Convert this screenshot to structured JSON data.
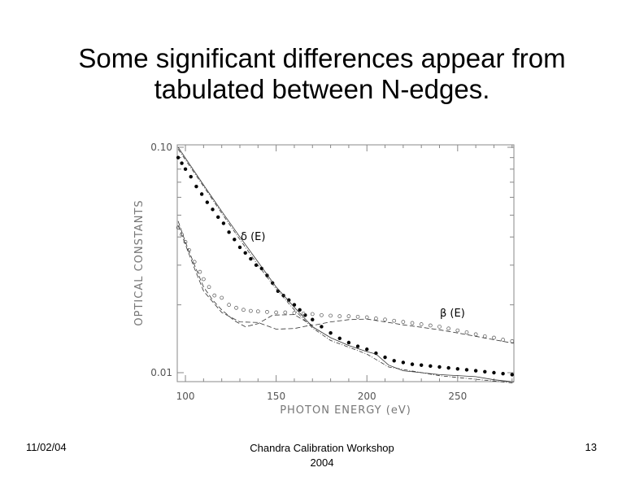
{
  "slide": {
    "title_line1": "Some significant differences appear from",
    "title_line2": "tabulated between N-edges.",
    "footer_date": "11/02/04",
    "footer_conference": "Chandra Calibration Workshop",
    "footer_year": "2004",
    "page_number": "13"
  },
  "chart_data": {
    "type": "scatter",
    "title": "",
    "xlabel": "PHOTON ENERGY (eV)",
    "ylabel": "OPTICAL CONSTANTS",
    "xlim": [
      95.5,
      281
    ],
    "ylim": [
      0.0091,
      0.1
    ],
    "yscale": "log",
    "xticks": [
      100,
      150,
      200,
      250
    ],
    "xtick_labels": [
      "100",
      "150",
      "200",
      "250"
    ],
    "yticks": [
      0.01,
      0.1
    ],
    "ytick_labels": [
      "0.01",
      "0.10"
    ],
    "annotations": [
      {
        "text": "δ (E)",
        "x": 132,
        "y": 0.037
      },
      {
        "text": "β (E)",
        "x": 244,
        "y": 0.0175
      }
    ],
    "series": [
      {
        "name": "delta measured",
        "style": "filled-dots",
        "x": [
          96,
          98,
          100,
          103,
          106,
          109,
          112,
          115,
          118,
          121,
          124,
          127,
          130,
          133,
          136,
          139,
          142,
          145,
          148,
          151,
          154,
          157,
          160,
          163,
          166,
          170,
          175,
          180,
          185,
          190,
          195,
          200,
          205,
          210,
          215,
          220,
          225,
          230,
          235,
          240,
          245,
          250,
          255,
          260,
          265,
          270,
          275,
          280
        ],
        "y": [
          0.09,
          0.085,
          0.08,
          0.074,
          0.067,
          0.062,
          0.057,
          0.053,
          0.049,
          0.046,
          0.042,
          0.039,
          0.036,
          0.034,
          0.032,
          0.03,
          0.029,
          0.027,
          0.025,
          0.023,
          0.022,
          0.021,
          0.02,
          0.019,
          0.018,
          0.0172,
          0.016,
          0.015,
          0.0142,
          0.0136,
          0.0131,
          0.0127,
          0.0122,
          0.0117,
          0.0113,
          0.0111,
          0.0109,
          0.0108,
          0.0107,
          0.0106,
          0.0105,
          0.0104,
          0.0103,
          0.0102,
          0.0101,
          0.01,
          0.0099,
          0.0098
        ]
      },
      {
        "name": "beta measured",
        "style": "open-circles",
        "x": [
          96,
          98,
          100,
          102,
          105,
          108,
          110,
          113,
          116,
          120,
          124,
          128,
          132,
          136,
          140,
          145,
          150,
          155,
          160,
          165,
          170,
          175,
          180,
          185,
          190,
          195,
          200,
          205,
          210,
          215,
          220,
          225,
          230,
          235,
          240,
          245,
          250,
          255,
          260,
          265,
          270,
          275,
          280
        ],
        "y": [
          0.044,
          0.041,
          0.038,
          0.035,
          0.031,
          0.028,
          0.026,
          0.024,
          0.022,
          0.0215,
          0.02,
          0.0194,
          0.019,
          0.0188,
          0.0187,
          0.0186,
          0.0185,
          0.0185,
          0.0184,
          0.0183,
          0.0182,
          0.018,
          0.0179,
          0.0178,
          0.0178,
          0.0177,
          0.0176,
          0.0174,
          0.0172,
          0.017,
          0.0168,
          0.0166,
          0.0164,
          0.0162,
          0.016,
          0.0157,
          0.0154,
          0.0151,
          0.0148,
          0.0145,
          0.0143,
          0.014,
          0.0138
        ]
      },
      {
        "name": "delta tabulated",
        "style": "solid-line",
        "x": [
          96,
          110,
          120,
          130,
          140,
          150,
          160,
          170,
          180,
          190,
          200,
          205,
          212,
          220,
          240,
          260,
          270,
          281
        ],
        "y": [
          0.1,
          0.068,
          0.052,
          0.04,
          0.031,
          0.024,
          0.0195,
          0.016,
          0.0143,
          0.0132,
          0.0124,
          0.0121,
          0.0108,
          0.0102,
          0.0098,
          0.0096,
          0.0093,
          0.0091
        ]
      },
      {
        "name": "delta tabulated 2",
        "style": "dash-dot-line",
        "x": [
          96,
          110,
          120,
          130,
          140,
          150,
          160,
          170,
          180,
          200,
          212,
          240,
          281
        ],
        "y": [
          0.098,
          0.067,
          0.051,
          0.039,
          0.03,
          0.0235,
          0.019,
          0.0158,
          0.0139,
          0.0121,
          0.0106,
          0.0097,
          0.009
        ]
      },
      {
        "name": "beta tabulated",
        "style": "dashed-line",
        "x": [
          96,
          100,
          105,
          110,
          115,
          120,
          127,
          133,
          140,
          148,
          160,
          170,
          180,
          190,
          200,
          210,
          220,
          230,
          240,
          250,
          260,
          270,
          281
        ],
        "y": [
          0.047,
          0.038,
          0.03,
          0.024,
          0.021,
          0.019,
          0.017,
          0.016,
          0.0165,
          0.018,
          0.0181,
          0.0162,
          0.0168,
          0.0172,
          0.0173,
          0.0168,
          0.0163,
          0.0159,
          0.0155,
          0.015,
          0.0145,
          0.014,
          0.0135
        ]
      },
      {
        "name": "beta tabulated 2",
        "style": "dashed-line",
        "x": [
          96,
          105,
          110,
          120,
          130,
          140,
          150,
          160,
          170
        ],
        "y": [
          0.045,
          0.029,
          0.023,
          0.0185,
          0.0168,
          0.0167,
          0.0156,
          0.0157,
          0.0163
        ]
      }
    ]
  }
}
